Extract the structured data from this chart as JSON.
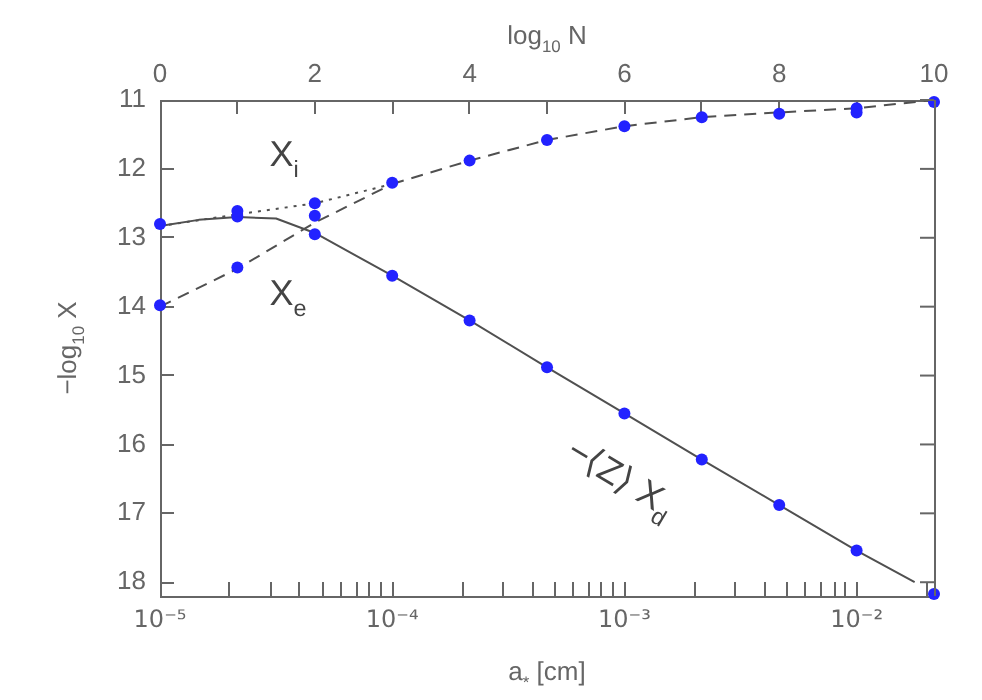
{
  "chart_data": {
    "type": "line",
    "xlabel": "a$_{*}$ [cm]",
    "ylabel": "−log$_{10}$ X",
    "x2label": "log$_{10}$ N",
    "log": "x",
    "xlim": [
      1e-05,
      0.02154
    ],
    "ylim": [
      18.2,
      11
    ],
    "x2lim": [
      0,
      10
    ],
    "xticks": [
      {
        "value": 1e-05,
        "label": "10⁻⁵"
      },
      {
        "value": 2e-05,
        "label": null
      },
      {
        "value": 3e-05,
        "label": null
      },
      {
        "value": 4e-05,
        "label": null
      },
      {
        "value": 5e-05,
        "label": null
      },
      {
        "value": 6e-05,
        "label": null
      },
      {
        "value": 7e-05,
        "label": null
      },
      {
        "value": 8e-05,
        "label": null
      },
      {
        "value": 9e-05,
        "label": null
      },
      {
        "value": 0.0001,
        "label": "10⁻⁴"
      },
      {
        "value": 0.0002,
        "label": null
      },
      {
        "value": 0.0003,
        "label": null
      },
      {
        "value": 0.0004,
        "label": null
      },
      {
        "value": 0.0005,
        "label": null
      },
      {
        "value": 0.0006,
        "label": null
      },
      {
        "value": 0.0007,
        "label": null
      },
      {
        "value": 0.0008,
        "label": null
      },
      {
        "value": 0.0009,
        "label": null
      },
      {
        "value": 0.001,
        "label": "10⁻³"
      },
      {
        "value": 0.002,
        "label": null
      },
      {
        "value": 0.003,
        "label": null
      },
      {
        "value": 0.004,
        "label": null
      },
      {
        "value": 0.005,
        "label": null
      },
      {
        "value": 0.006,
        "label": null
      },
      {
        "value": 0.007,
        "label": null
      },
      {
        "value": 0.008,
        "label": null
      },
      {
        "value": 0.009,
        "label": null
      },
      {
        "value": 0.01,
        "label": "10⁻²"
      },
      {
        "value": 0.02,
        "label": null
      }
    ],
    "x2ticks": [
      0,
      {
        "value": 1,
        "label": null
      },
      2,
      {
        "value": 3,
        "label": null
      },
      4,
      {
        "value": 5,
        "label": null
      },
      6,
      {
        "value": 7,
        "label": null
      },
      8,
      {
        "value": 9,
        "label": null
      },
      10
    ],
    "yticks": [
      11,
      12,
      13,
      14,
      15,
      16,
      17,
      18
    ],
    "grid": false,
    "legend": false,
    "series": [
      {
        "name": "X$_{i}$",
        "type": "line",
        "line_style": "dotted",
        "marker": "none",
        "color": "#505050",
        "x": [
          1e-05,
          2.154e-05,
          4.642e-05,
          0.0001
        ],
        "values": [
          12.83,
          12.66,
          12.5,
          12.22
        ]
      },
      {
        "type": "line",
        "line_style": "dashed",
        "marker": "none",
        "color": "#505050",
        "x": [
          0.0001,
          0.0002154,
          0.0004642,
          0.001,
          0.002154,
          0.004642,
          0.01,
          0.02154
        ],
        "values": [
          12.22,
          11.88,
          11.58,
          11.38,
          11.25,
          11.18,
          11.12,
          11.0
        ]
      },
      {
        "name": "X$_{e}$",
        "type": "line",
        "line_style": "dashed",
        "marker": "none",
        "color": "#505050",
        "x": [
          1e-05,
          2.154e-05,
          4.642e-05,
          0.0001
        ],
        "values": [
          14.0,
          13.45,
          12.78,
          12.22
        ]
      },
      {
        "name": "−⟨Z⟩ X$_{d}$",
        "type": "line",
        "line_style": "solid",
        "marker": "none",
        "color": "#505050",
        "x": [
          1e-05,
          1.468e-05,
          2.154e-05,
          3.162e-05,
          4.642e-05,
          0.0001,
          0.0002154,
          0.0004642,
          0.001,
          0.002154,
          0.004642,
          0.01,
          0.01778
        ],
        "values": [
          12.83,
          12.74,
          12.7,
          12.72,
          12.93,
          13.55,
          14.2,
          14.88,
          15.55,
          16.22,
          16.88,
          17.54,
          18.0
        ]
      },
      {
        "type": "scatter",
        "marker": "circle",
        "color": "#2222ff",
        "x": [
          1e-05,
          2.154e-05,
          4.642e-05,
          0.0001,
          0.0002154,
          0.0004642,
          0.001,
          0.002154,
          0.004642,
          0.01,
          0.02154
        ],
        "values": [
          12.8,
          12.61,
          12.5,
          12.2,
          11.88,
          11.58,
          11.38,
          11.25,
          11.2,
          11.12,
          11.03
        ]
      },
      {
        "type": "scatter",
        "marker": "circle",
        "color": "#2222ff",
        "x": [
          1e-05,
          2.154e-05,
          4.642e-05,
          0.01
        ],
        "values": [
          13.98,
          13.43,
          12.68,
          11.18
        ]
      },
      {
        "type": "scatter",
        "marker": "circle",
        "color": "#2222ff",
        "x": [
          2.154e-05,
          4.642e-05,
          0.0001,
          0.0002154,
          0.0004642,
          0.001,
          0.002154,
          0.004642,
          0.01,
          0.02154
        ],
        "values": [
          12.69,
          12.95,
          13.55,
          14.2,
          14.88,
          15.55,
          16.22,
          16.88,
          17.54,
          18.17
        ]
      }
    ]
  }
}
